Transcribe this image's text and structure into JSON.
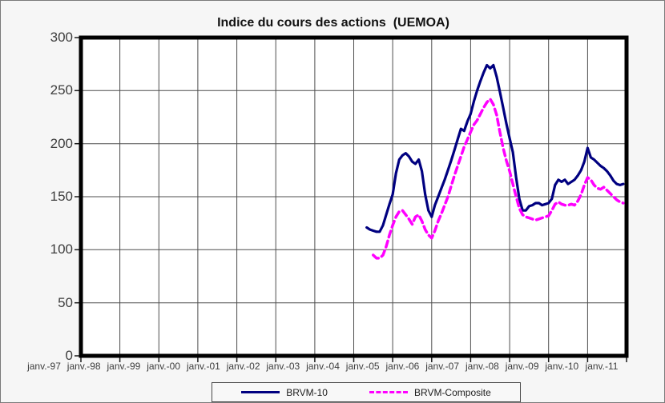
{
  "title": "Indice du cours des actions  (UEMOA)",
  "chart_data": {
    "type": "line",
    "title": "Indice du cours des actions  (UEMOA)",
    "grid": true,
    "legend_position": "bottom",
    "x_axis": {
      "tick_labels": [
        "janv.-97",
        "janv.-98",
        "janv.-99",
        "janv.-00",
        "janv.-01",
        "janv.-02",
        "janv.-03",
        "janv.-04",
        "janv.-05",
        "janv.-06",
        "janv.-07",
        "janv.-08",
        "janv.-09",
        "janv.-10",
        "janv.-11"
      ],
      "months_per_tick": 12,
      "total_months": 168
    },
    "y_axis": {
      "min": 0,
      "max": 300,
      "step": 50,
      "tick_labels": [
        "300",
        "250",
        "200",
        "150",
        "100",
        "50",
        "0"
      ]
    },
    "series": [
      {
        "name": "BRVM-10",
        "color": "#000080",
        "line_style": "solid",
        "start_month_index": 88,
        "monthly_values": [
          121,
          119,
          118,
          117,
          117,
          123,
          133,
          143,
          152,
          172,
          185,
          189,
          191,
          188,
          183,
          181,
          185,
          174,
          152,
          137,
          131,
          142,
          150,
          158,
          166,
          175,
          184,
          194,
          204,
          214,
          212,
          221,
          228,
          240,
          250,
          259,
          267,
          274,
          271,
          274,
          263,
          249,
          234,
          219,
          205,
          192,
          168,
          148,
          137,
          137,
          141,
          142,
          144,
          144,
          142,
          143,
          144,
          148,
          161,
          166,
          164,
          166,
          162,
          164,
          166,
          170,
          175,
          183,
          196,
          187,
          185,
          182,
          179,
          177,
          174,
          170,
          165,
          162,
          161,
          162
        ]
      },
      {
        "name": "BRVM-Composite",
        "color": "#FF00FF",
        "line_style": "dashed",
        "start_month_index": 90,
        "monthly_values": [
          95,
          92,
          92,
          95,
          103,
          114,
          123,
          131,
          136,
          137,
          133,
          129,
          124,
          131,
          133,
          127,
          119,
          114,
          111,
          118,
          127,
          134,
          142,
          150,
          160,
          170,
          179,
          188,
          197,
          204,
          211,
          218,
          222,
          228,
          234,
          239,
          242,
          237,
          227,
          211,
          196,
          184,
          174,
          162,
          150,
          139,
          133,
          131,
          130,
          129,
          128,
          129,
          130,
          131,
          132,
          137,
          143,
          145,
          143,
          142,
          142,
          143,
          142,
          146,
          152,
          161,
          168,
          166,
          161,
          158,
          157,
          159,
          156,
          153,
          150,
          147,
          145,
          144
        ]
      }
    ]
  }
}
